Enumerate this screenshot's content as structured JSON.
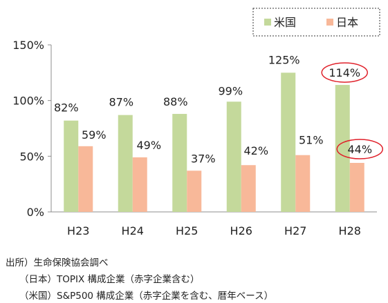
{
  "chart_data": {
    "type": "bar",
    "categories": [
      "H23",
      "H24",
      "H25",
      "H26",
      "H27",
      "H28"
    ],
    "series": [
      {
        "name": "米国",
        "color": "#c4d99b",
        "values": [
          82,
          87,
          88,
          99,
          125,
          114
        ]
      },
      {
        "name": "日本",
        "color": "#f8b899",
        "values": [
          59,
          49,
          37,
          42,
          51,
          44
        ]
      }
    ],
    "value_labels": {
      "米国": [
        "82%",
        "87%",
        "88%",
        "99%",
        "125%",
        "114%"
      ],
      "日本": [
        "59%",
        "49%",
        "37%",
        "42%",
        "51%",
        "44%"
      ]
    },
    "y_ticks": [
      "0%",
      "50%",
      "100%",
      "150%"
    ],
    "y_tick_values": [
      0,
      50,
      100,
      150
    ],
    "ylim": [
      0,
      150
    ],
    "legend_position": "top-right",
    "highlighted": {
      "category": "H28",
      "series": [
        "米国",
        "日本"
      ],
      "color": "#e0202a"
    },
    "grid": false
  },
  "notes": {
    "source": "出所）生命保険協会調べ",
    "japan": "（日本）TOPIX 構成企業（赤字企業含む）",
    "usa": "（米国）S&P500 構成企業（赤字企業を含む、暦年ベース）"
  }
}
